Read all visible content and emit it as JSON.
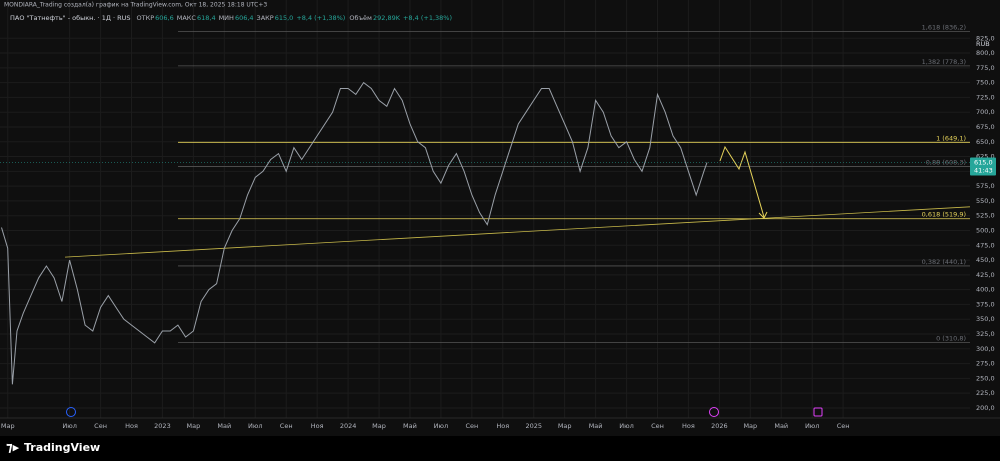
{
  "chart_data": {
    "type": "line",
    "header": "MONDIARA_Trading создал(а) график на TradingView.com, Окт 18, 2025 18:18 UTC+3",
    "symbol": "ПАО \"Татнефть\" - обыкн. · 1Д · RUS",
    "legend_items": [
      {
        "name": "ОТКР",
        "value": 606.6,
        "label": "606,6"
      },
      {
        "name": "МАКС",
        "value": 618.4,
        "label": "618,4"
      },
      {
        "name": "МИН",
        "value": 606.4,
        "label": "606,4"
      },
      {
        "name": "ЗАКР",
        "value": 615.0,
        "label": "615,0"
      }
    ],
    "change": "+8,4 (+1,38%)",
    "volume_name": "Объём",
    "volume": "292,89K",
    "volume_change": "+8,4 (+1,38%)",
    "currency": "RUB",
    "last_price": {
      "value": 615,
      "label": "615,0"
    },
    "countdown": "41:43",
    "brand": "TradingView",
    "series": [
      {
        "name": "ПАО \"Татнефть\"",
        "color": "#9aa0a8",
        "x": [
          1.6,
          2.0,
          2.3,
          2.6,
          3,
          3.5,
          4,
          4.5,
          5,
          5.5,
          6,
          6.5,
          7,
          7.5,
          8,
          8.5,
          9,
          9.5,
          10,
          10.5,
          11,
          11.5,
          12,
          12.5,
          13,
          13.5,
          14,
          14.5,
          15,
          15.5,
          16,
          16.5,
          17,
          17.5,
          18,
          18.5,
          19,
          19.5,
          20,
          20.5,
          21,
          22,
          23,
          23.5,
          24,
          24.5,
          25,
          25.5,
          26,
          26.5,
          27,
          27.5,
          28,
          28.5,
          29,
          29.5,
          30,
          30.5,
          31,
          31.5,
          32,
          32.5,
          33,
          33.5,
          34,
          34.5,
          35,
          35.5,
          36,
          36.5,
          37,
          37.5,
          38,
          38.5,
          39,
          39.5,
          40,
          40.5,
          41,
          41.5,
          42,
          42.5,
          43,
          43.5,
          44,
          44.5,
          45,
          45.5,
          46,
          46.5,
          47,
          47.2
        ],
        "values": [
          505,
          470,
          240,
          330,
          360,
          390,
          420,
          440,
          420,
          380,
          450,
          400,
          340,
          330,
          370,
          390,
          370,
          350,
          340,
          330,
          320,
          310,
          330,
          330,
          340,
          320,
          330,
          380,
          400,
          410,
          470,
          500,
          520,
          560,
          590,
          600,
          620,
          630,
          600,
          640,
          620,
          660,
          700,
          740,
          740,
          730,
          750,
          740,
          720,
          710,
          740,
          720,
          680,
          650,
          640,
          600,
          580,
          610,
          630,
          600,
          560,
          530,
          510,
          560,
          600,
          640,
          680,
          700,
          720,
          740,
          740,
          710,
          680,
          650,
          600,
          640,
          720,
          700,
          660,
          640,
          650,
          620,
          600,
          640,
          730,
          700,
          660,
          640,
          600,
          560,
          600,
          615
        ]
      }
    ],
    "levels": [
      {
        "label": "1,618 (836,2)",
        "value": 836.2,
        "color": "#555555"
      },
      {
        "label": "1,382 (778,3)",
        "value": 778.3,
        "color": "#555555"
      },
      {
        "label": "1 (649,1)",
        "value": 649.1,
        "color": "#e6d35a"
      },
      {
        "label": "0,88 (608,3)",
        "value": 608.3,
        "color": "#555555"
      },
      {
        "label": "0,618 (519,9)",
        "value": 519.9,
        "color": "#e6d35a"
      },
      {
        "label": "0,382 (440,1)",
        "value": 440.1,
        "color": "#555555"
      },
      {
        "label": "0 (310,8)",
        "value": 310.8,
        "color": "#555555"
      }
    ],
    "trendline": {
      "values": [
        455,
        540
      ],
      "color": "#c8b94a"
    },
    "xlim": [
      1.5,
      64.2
    ],
    "ylim": [
      183,
      866
    ],
    "xticks": [
      {
        "value": 2,
        "label": "Мар"
      },
      {
        "value": 6,
        "label": "Июл"
      },
      {
        "value": 8,
        "label": "Сен"
      },
      {
        "value": 10,
        "label": "Ноя"
      },
      {
        "value": 12,
        "label": "2023"
      },
      {
        "value": 14,
        "label": "Мар"
      },
      {
        "value": 16,
        "label": "Май"
      },
      {
        "value": 18,
        "label": "Июл"
      },
      {
        "value": 20,
        "label": "Сен"
      },
      {
        "value": 22,
        "label": "Ноя"
      },
      {
        "value": 24,
        "label": "2024"
      },
      {
        "value": 26,
        "label": "Мар"
      },
      {
        "value": 28,
        "label": "Май"
      },
      {
        "value": 30,
        "label": "Июл"
      },
      {
        "value": 32,
        "label": "Сен"
      },
      {
        "value": 34,
        "label": "Ноя"
      },
      {
        "value": 36,
        "label": "2025"
      },
      {
        "value": 38,
        "label": "Мар"
      },
      {
        "value": 40,
        "label": "Май"
      },
      {
        "value": 42,
        "label": "Июл"
      },
      {
        "value": 44,
        "label": "Сен"
      },
      {
        "value": 46,
        "label": "Ноя"
      },
      {
        "value": 48,
        "label": "2026"
      },
      {
        "value": 50,
        "label": "Мар"
      },
      {
        "value": 52,
        "label": "Май"
      },
      {
        "value": 54,
        "label": "Июл"
      },
      {
        "value": 56,
        "label": "Сен"
      }
    ],
    "yticks": [
      {
        "value": 200,
        "label": "200,0"
      },
      {
        "value": 225,
        "label": "225,0"
      },
      {
        "value": 250,
        "label": "250,0"
      },
      {
        "value": 275,
        "label": "275,0"
      },
      {
        "value": 300,
        "label": "300,0"
      },
      {
        "value": 325,
        "label": "325,0"
      },
      {
        "value": 350,
        "label": "350,0"
      },
      {
        "value": 375,
        "label": "375,0"
      },
      {
        "value": 400,
        "label": "400,0"
      },
      {
        "value": 425,
        "label": "425,0"
      },
      {
        "value": 450,
        "label": "450,0"
      },
      {
        "value": 475,
        "label": "475,0"
      },
      {
        "value": 500,
        "label": "500,0"
      },
      {
        "value": 525,
        "label": "525,0"
      },
      {
        "value": 550,
        "label": "550,0"
      },
      {
        "value": 575,
        "label": "575,0"
      },
      {
        "value": 600,
        "label": "600,0"
      },
      {
        "value": 625,
        "label": "625,0"
      },
      {
        "value": 650,
        "label": "650,0"
      },
      {
        "value": 675,
        "label": "675,0"
      },
      {
        "value": 700,
        "label": "700,0"
      },
      {
        "value": 725,
        "label": "725,0"
      },
      {
        "value": 750,
        "label": "750,0"
      },
      {
        "value": 775,
        "label": "775,0"
      },
      {
        "value": 800,
        "label": "800,0"
      },
      {
        "value": 825,
        "label": "825,0"
      }
    ],
    "grid": true
  }
}
